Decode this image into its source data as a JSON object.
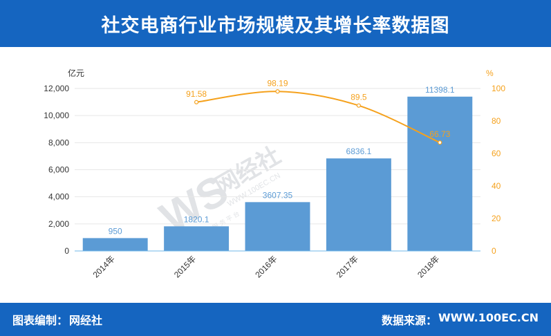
{
  "title": "社交电商行业市场规模及其增长率数据图",
  "footer": {
    "credit_label": "图表编制：",
    "credit_value": "网经社",
    "source_label": "数据来源：",
    "source_value": "WWW.100EC.CN"
  },
  "watermark": {
    "logo": "WS",
    "brand": "网经社",
    "url": "WWW.100EC.CN",
    "slogan": "网 络 经 济 服 务 平 台"
  },
  "colors": {
    "header": "#1565c0",
    "bar": "#5b9bd5",
    "line": "#f5a11c",
    "axis_right": "#f5a11c",
    "axis_left": "#333333"
  },
  "chart_data": {
    "type": "bar",
    "categories": [
      "2014年",
      "2015年",
      "2016年",
      "2017年",
      "2018年"
    ],
    "series": [
      {
        "name": "",
        "type": "bar",
        "axis": "left",
        "values": [
          950,
          1820.1,
          3607.35,
          6836.1,
          11398.1
        ],
        "labels": [
          "950",
          "1820.1",
          "3607.35",
          "6836.1",
          "11398.1"
        ]
      },
      {
        "name": "",
        "type": "line",
        "axis": "right",
        "values": [
          null,
          91.58,
          98.19,
          89.5,
          66.73
        ],
        "labels": [
          "",
          "91.58",
          "98.19",
          "89.5",
          "66.73"
        ]
      }
    ],
    "y_left": {
      "unit": "亿元",
      "range": [
        0,
        12000
      ],
      "ticks": [
        "0",
        "2,000",
        "4,000",
        "6,000",
        "8,000",
        "10,000",
        "12,000"
      ]
    },
    "y_right": {
      "unit": "%",
      "range": [
        0,
        100
      ],
      "ticks": [
        "0",
        "20",
        "40",
        "60",
        "80",
        "100"
      ]
    },
    "grid": true,
    "legend": "none"
  }
}
